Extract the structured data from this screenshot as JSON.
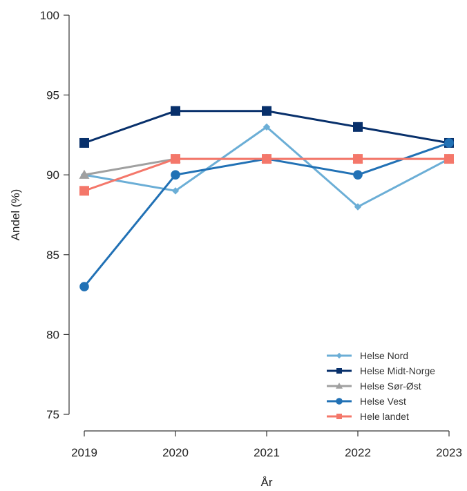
{
  "chart_data": {
    "type": "line",
    "title": "",
    "xlabel": "År",
    "ylabel": "Andel (%)",
    "x": [
      "2019",
      "2020",
      "2021",
      "2022",
      "2023"
    ],
    "ylim": [
      75,
      100
    ],
    "yticks": [
      "75",
      "80",
      "85",
      "90",
      "95",
      "100"
    ],
    "grid": false,
    "legend_position": "bottom-right",
    "series": [
      {
        "name": "Helse Nord",
        "values": [
          90,
          89,
          93,
          88,
          91
        ],
        "color": "#6baed6",
        "marker": "diamond"
      },
      {
        "name": "Helse Midt-Norge",
        "values": [
          92,
          94,
          94,
          93,
          92
        ],
        "color": "#08306b",
        "marker": "square"
      },
      {
        "name": "Helse Sør-Øst",
        "values": [
          90,
          91,
          91,
          91,
          91
        ],
        "color": "#a0a0a0",
        "marker": "triangle"
      },
      {
        "name": "Helse Vest",
        "values": [
          83,
          90,
          91,
          90,
          92
        ],
        "color": "#2171b5",
        "marker": "circle"
      },
      {
        "name": "Hele landet",
        "values": [
          89,
          91,
          91,
          91,
          91
        ],
        "color": "#f4776a",
        "marker": "square"
      }
    ]
  }
}
